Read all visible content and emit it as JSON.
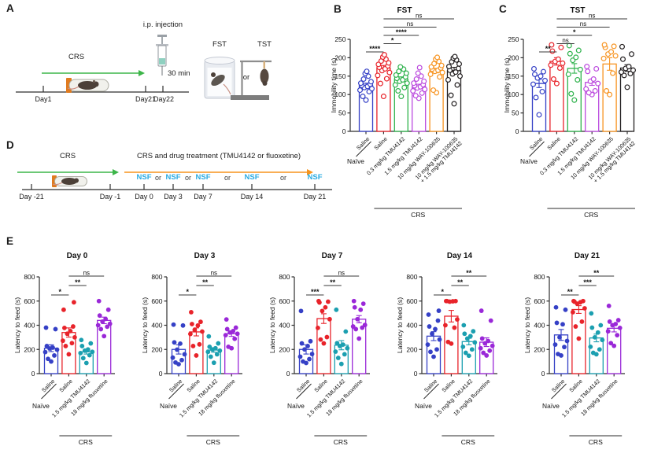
{
  "figure": {
    "A": {
      "label": "A",
      "crs": "CRS",
      "ip_injection": "i.p. injection",
      "delay": "30 min",
      "fst": "FST",
      "tst": "TST",
      "or": "or",
      "days": [
        "Day1",
        "Day21",
        "Day22"
      ]
    },
    "B": {
      "label": "B"
    },
    "C": {
      "label": "C"
    },
    "D": {
      "label": "D",
      "crs": "CRS",
      "treatment": "CRS and drug treatment (TMU4142 or fluoxetine)",
      "nsf": "NSF",
      "or": "or",
      "days": [
        "Day -21",
        "Day -1",
        "Day 0",
        "Day 3",
        "Day 7",
        "Day 14",
        "Day 21"
      ]
    },
    "E": {
      "label": "E"
    }
  },
  "colors": {
    "blue": "#3540c6",
    "red": "#e8232a",
    "green": "#2eb24c",
    "violet": "#bb4ade",
    "orange": "#f79421",
    "black": "#231f20",
    "teal": "#1b9fb0",
    "purple": "#9a28d8",
    "nsf_blue": "#29abe2",
    "arrow_green": "#3cb549",
    "arrow_orange": "#f7941d"
  },
  "chart_data": [
    {
      "panel": "B",
      "kind": "grouped6",
      "type": "bar",
      "title": "FST",
      "ylabel": "Immobility time (s)",
      "ylim": [
        0,
        250
      ],
      "yticks": [
        0,
        50,
        100,
        150,
        200,
        250
      ],
      "marker": "open",
      "series": [
        {
          "label_lines": [
            "Saline"
          ],
          "color": "#3540c6",
          "mean": 125,
          "sem": 6,
          "points": [
            85,
            95,
            108,
            112,
            116,
            119,
            122,
            125,
            128,
            131,
            135,
            142,
            150,
            157,
            163
          ]
        },
        {
          "label_lines": [
            "Saline"
          ],
          "color": "#e8232a",
          "mean": 172,
          "sem": 7,
          "points": [
            95,
            130,
            143,
            152,
            160,
            165,
            170,
            174,
            178,
            182,
            186,
            191,
            196,
            202,
            208
          ]
        },
        {
          "label_lines": [
            "0.3 mg/kg TMU4142"
          ],
          "color": "#2eb24c",
          "mean": 142,
          "sem": 6,
          "points": [
            95,
            110,
            119,
            126,
            131,
            136,
            140,
            144,
            148,
            153,
            158,
            163,
            169,
            175
          ]
        },
        {
          "label_lines": [
            "1.5 mg/kg TMU4142"
          ],
          "color": "#bb4ade",
          "mean": 122,
          "sem": 6,
          "points": [
            90,
            97,
            104,
            110,
            114,
            118,
            121,
            124,
            127,
            131,
            136,
            142,
            150,
            158,
            173
          ]
        },
        {
          "label_lines": [
            "10 mg/kg WAY-100635"
          ],
          "color": "#f79421",
          "mean": 165,
          "sem": 6,
          "points": [
            105,
            112,
            148,
            155,
            160,
            163,
            166,
            169,
            172,
            175,
            179,
            184,
            190,
            196,
            201
          ]
        },
        {
          "label_lines": [
            "10 mg/kg WAY-100635",
            "+ 1.5 mg/kg TMU4142"
          ],
          "color": "#231f20",
          "mean": 165,
          "sem": 9,
          "points": [
            75,
            98,
            126,
            140,
            150,
            156,
            161,
            166,
            171,
            176,
            183,
            189,
            194,
            199,
            203
          ]
        }
      ],
      "significance": [
        {
          "a": 0,
          "b": 1,
          "label": "****",
          "level": 0
        },
        {
          "a": 1,
          "b": 2,
          "label": "*",
          "level": 1
        },
        {
          "a": 1,
          "b": 3,
          "label": "****",
          "level": 2
        },
        {
          "a": 1,
          "b": 4,
          "label": "ns",
          "level": 3
        },
        {
          "a": 1,
          "b": 5,
          "label": "ns",
          "level": 4
        }
      ],
      "footer": {
        "naive": "Naïve",
        "crs": "CRS",
        "crs_from": 1,
        "crs_to": 5
      }
    },
    {
      "panel": "C",
      "kind": "grouped6",
      "type": "bar",
      "title": "TST",
      "ylabel": "Immobility time (s)",
      "ylim": [
        0,
        250
      ],
      "yticks": [
        0,
        50,
        100,
        150,
        200,
        250
      ],
      "marker": "open",
      "series": [
        {
          "label_lines": [
            "Saline"
          ],
          "color": "#3540c6",
          "mean": 130,
          "sem": 11,
          "points": [
            45,
            92,
            108,
            128,
            138,
            145,
            150,
            155,
            162,
            170
          ]
        },
        {
          "label_lines": [
            "Saline"
          ],
          "color": "#e8232a",
          "mean": 190,
          "sem": 10,
          "points": [
            130,
            142,
            172,
            180,
            185,
            190,
            196,
            218,
            228,
            235
          ]
        },
        {
          "label_lines": [
            "0.3 mg/kg TMU4142"
          ],
          "color": "#2eb24c",
          "mean": 171,
          "sem": 13,
          "points": [
            85,
            102,
            140,
            155,
            168,
            193,
            201,
            211,
            220,
            233
          ]
        },
        {
          "label_lines": [
            "1.5 mg/kg TMU4142"
          ],
          "color": "#bb4ade",
          "mean": 133,
          "sem": 8,
          "points": [
            100,
            105,
            110,
            115,
            130,
            136,
            142,
            163,
            170,
            176
          ]
        },
        {
          "label_lines": [
            "10 mg/kg WAY-100635"
          ],
          "color": "#f79421",
          "mean": 183,
          "sem": 17,
          "points": [
            100,
            110,
            158,
            198,
            205,
            210,
            216,
            228,
            231,
            235
          ]
        },
        {
          "label_lines": [
            "10 mg/kg WAY-100635",
            "+ 1.5 mg/kg TMU4142"
          ],
          "color": "#231f20",
          "mean": 172,
          "sem": 9,
          "points": [
            120,
            152,
            157,
            161,
            166,
            171,
            176,
            196,
            210,
            230
          ]
        }
      ],
      "significance": [
        {
          "a": 0,
          "b": 1,
          "label": "**",
          "level": 0
        },
        {
          "a": 1,
          "b": 2,
          "label": "ns",
          "level": 1
        },
        {
          "a": 1,
          "b": 3,
          "label": "*",
          "level": 2
        },
        {
          "a": 1,
          "b": 4,
          "label": "ns",
          "level": 3
        },
        {
          "a": 1,
          "b": 5,
          "label": "ns",
          "level": 4
        }
      ],
      "footer": {
        "naive": "Naïve",
        "crs": "CRS",
        "crs_from": 1,
        "crs_to": 5
      }
    },
    {
      "panel": "E1",
      "kind": "grouped4",
      "type": "bar",
      "title": "Day 0",
      "ylabel": "Latency to feed (s)",
      "ylim": [
        0,
        800
      ],
      "yticks": [
        0,
        200,
        400,
        600,
        800
      ],
      "marker": "filled",
      "series": [
        {
          "label_lines": [
            "Saline"
          ],
          "color": "#3540c6",
          "mean": 210,
          "sem": 28,
          "points": [
            100,
            122,
            150,
            178,
            198,
            208,
            215,
            228,
            368,
            380
          ]
        },
        {
          "label_lines": [
            "Saline"
          ],
          "color": "#e8232a",
          "mean": 340,
          "sem": 38,
          "points": [
            160,
            228,
            252,
            272,
            300,
            330,
            352,
            378,
            390,
            528,
            590
          ]
        },
        {
          "label_lines": [
            "1.5 mg/kg TMU4142"
          ],
          "color": "#1b9fb0",
          "mean": 180,
          "sem": 18,
          "points": [
            88,
            128,
            152,
            170,
            180,
            190,
            200,
            228,
            250,
            278
          ]
        },
        {
          "label_lines": [
            "18 mg/kg fluoxetine"
          ],
          "color": "#9a28d8",
          "mean": 440,
          "sem": 27,
          "points": [
            310,
            368,
            388,
            400,
            412,
            430,
            452,
            480,
            528,
            600
          ]
        }
      ],
      "significance": [
        {
          "a": 0,
          "b": 1,
          "label": "*",
          "level": 0
        },
        {
          "a": 1,
          "b": 2,
          "label": "**",
          "level": 1
        },
        {
          "a": 1,
          "b": 3,
          "label": "ns",
          "level": 2
        }
      ],
      "footer": {
        "naive": "Naïve",
        "crs": "CRS",
        "crs_from": 1,
        "crs_to": 3
      }
    },
    {
      "panel": "E2",
      "kind": "grouped4",
      "type": "bar",
      "title": "Day 3",
      "ylabel": "Latency to feed (s)",
      "ylim": [
        0,
        800
      ],
      "yticks": [
        0,
        200,
        400,
        600,
        800
      ],
      "marker": "filled",
      "series": [
        {
          "label_lines": [
            "Saline"
          ],
          "color": "#3540c6",
          "mean": 200,
          "sem": 38,
          "points": [
            78,
            92,
            112,
            132,
            160,
            198,
            248,
            258,
            398,
            405
          ]
        },
        {
          "label_lines": [
            "Saline"
          ],
          "color": "#e8232a",
          "mean": 345,
          "sem": 33,
          "points": [
            150,
            228,
            242,
            328,
            348,
            362,
            398,
            410,
            428,
            508
          ]
        },
        {
          "label_lines": [
            "1.5 mg/kg TMU4142"
          ],
          "color": "#1b9fb0",
          "mean": 195,
          "sem": 18,
          "points": [
            90,
            140,
            160,
            180,
            190,
            200,
            210,
            222,
            250,
            308
          ]
        },
        {
          "label_lines": [
            "18 mg/kg fluoxetine"
          ],
          "color": "#9a28d8",
          "mean": 330,
          "sem": 22,
          "points": [
            210,
            222,
            288,
            318,
            330,
            340,
            352,
            368,
            380,
            448
          ]
        }
      ],
      "significance": [
        {
          "a": 0,
          "b": 1,
          "label": "*",
          "level": 0
        },
        {
          "a": 1,
          "b": 2,
          "label": "**",
          "level": 1
        },
        {
          "a": 1,
          "b": 3,
          "label": "ns",
          "level": 2
        }
      ],
      "footer": {
        "naive": "Naïve",
        "crs": "CRS",
        "crs_from": 1,
        "crs_to": 3
      }
    },
    {
      "panel": "E3",
      "kind": "grouped4",
      "type": "bar",
      "title": "Day 7",
      "ylabel": "Latency to feed (s)",
      "ylim": [
        0,
        800
      ],
      "yticks": [
        0,
        200,
        400,
        600,
        800
      ],
      "marker": "filled",
      "series": [
        {
          "label_lines": [
            "Saline"
          ],
          "color": "#3540c6",
          "mean": 200,
          "sem": 38,
          "points": [
            88,
            100,
            120,
            140,
            162,
            200,
            228,
            250,
            268,
            518
          ]
        },
        {
          "label_lines": [
            "Saline"
          ],
          "color": "#e8232a",
          "mean": 455,
          "sem": 40,
          "points": [
            250,
            282,
            302,
            378,
            450,
            518,
            548,
            588,
            595,
            600
          ]
        },
        {
          "label_lines": [
            "1.5 mg/kg TMU4142"
          ],
          "color": "#1b9fb0",
          "mean": 235,
          "sem": 38,
          "points": [
            80,
            130,
            160,
            182,
            210,
            228,
            240,
            252,
            348,
            528
          ]
        },
        {
          "label_lines": [
            "18 mg/kg fluoxetine"
          ],
          "color": "#9a28d8",
          "mean": 450,
          "sem": 30,
          "points": [
            290,
            368,
            380,
            390,
            402,
            450,
            528,
            548,
            578,
            600
          ]
        }
      ],
      "significance": [
        {
          "a": 0,
          "b": 1,
          "label": "***",
          "level": 0
        },
        {
          "a": 1,
          "b": 2,
          "label": "**",
          "level": 1
        },
        {
          "a": 1,
          "b": 3,
          "label": "ns",
          "level": 2
        }
      ],
      "footer": {
        "naive": "Naïve",
        "crs": "CRS",
        "crs_from": 1,
        "crs_to": 3
      }
    },
    {
      "panel": "E4",
      "kind": "grouped4",
      "type": "bar",
      "title": "Day 14",
      "ylabel": "Latency to feed (s)",
      "ylim": [
        0,
        800
      ],
      "yticks": [
        0,
        200,
        400,
        600,
        800
      ],
      "marker": "filled",
      "series": [
        {
          "label_lines": [
            "Saline"
          ],
          "color": "#3540c6",
          "mean": 310,
          "sem": 37,
          "points": [
            140,
            180,
            200,
            240,
            282,
            330,
            368,
            390,
            438,
            488,
            520
          ]
        },
        {
          "label_lines": [
            "Saline"
          ],
          "color": "#e8232a",
          "mean": 475,
          "sem": 48,
          "points": [
            248,
            262,
            380,
            400,
            448,
            595,
            598,
            600,
            600,
            600
          ]
        },
        {
          "label_lines": [
            "1.5 mg/kg TMU4142"
          ],
          "color": "#1b9fb0",
          "mean": 265,
          "sem": 27,
          "points": [
            148,
            172,
            200,
            222,
            258,
            290,
            310,
            330,
            350,
            400
          ]
        },
        {
          "label_lines": [
            "18 mg/kg fluoxetine"
          ],
          "color": "#9a28d8",
          "mean": 260,
          "sem": 36,
          "points": [
            150,
            172,
            190,
            210,
            230,
            250,
            270,
            290,
            438,
            520
          ]
        }
      ],
      "significance": [
        {
          "a": 0,
          "b": 1,
          "label": "*",
          "level": 0
        },
        {
          "a": 1,
          "b": 2,
          "label": "**",
          "level": 1
        },
        {
          "a": 1,
          "b": 3,
          "label": "**",
          "level": 2
        }
      ],
      "footer": {
        "naive": "Naïve",
        "crs": "CRS",
        "crs_from": 1,
        "crs_to": 3
      }
    },
    {
      "panel": "E5",
      "kind": "grouped4",
      "type": "bar",
      "title": "Day 21",
      "ylabel": "Latency to feed (s)",
      "ylim": [
        0,
        800
      ],
      "yticks": [
        0,
        200,
        400,
        600,
        800
      ],
      "marker": "filled",
      "series": [
        {
          "label_lines": [
            "Saline"
          ],
          "color": "#3540c6",
          "mean": 320,
          "sem": 45,
          "points": [
            150,
            162,
            220,
            240,
            270,
            300,
            408,
            420,
            528,
            548
          ]
        },
        {
          "label_lines": [
            "Saline"
          ],
          "color": "#e8232a",
          "mean": 530,
          "sem": 32,
          "points": [
            290,
            390,
            430,
            508,
            540,
            578,
            590,
            595,
            600,
            600
          ]
        },
        {
          "label_lines": [
            "1.5 mg/kg TMU4142"
          ],
          "color": "#1b9fb0",
          "mean": 295,
          "sem": 32,
          "points": [
            160,
            172,
            200,
            222,
            278,
            300,
            340,
            380,
            400,
            498
          ]
        },
        {
          "label_lines": [
            "18 mg/kg fluoxetine"
          ],
          "color": "#9a28d8",
          "mean": 375,
          "sem": 30,
          "points": [
            230,
            252,
            318,
            350,
            378,
            400,
            410,
            430,
            442,
            560
          ]
        }
      ],
      "significance": [
        {
          "a": 0,
          "b": 1,
          "label": "**",
          "level": 0
        },
        {
          "a": 1,
          "b": 2,
          "label": "***",
          "level": 1
        },
        {
          "a": 1,
          "b": 3,
          "label": "**",
          "level": 2
        }
      ],
      "footer": {
        "naive": "Naïve",
        "crs": "CRS",
        "crs_from": 1,
        "crs_to": 3
      }
    }
  ]
}
